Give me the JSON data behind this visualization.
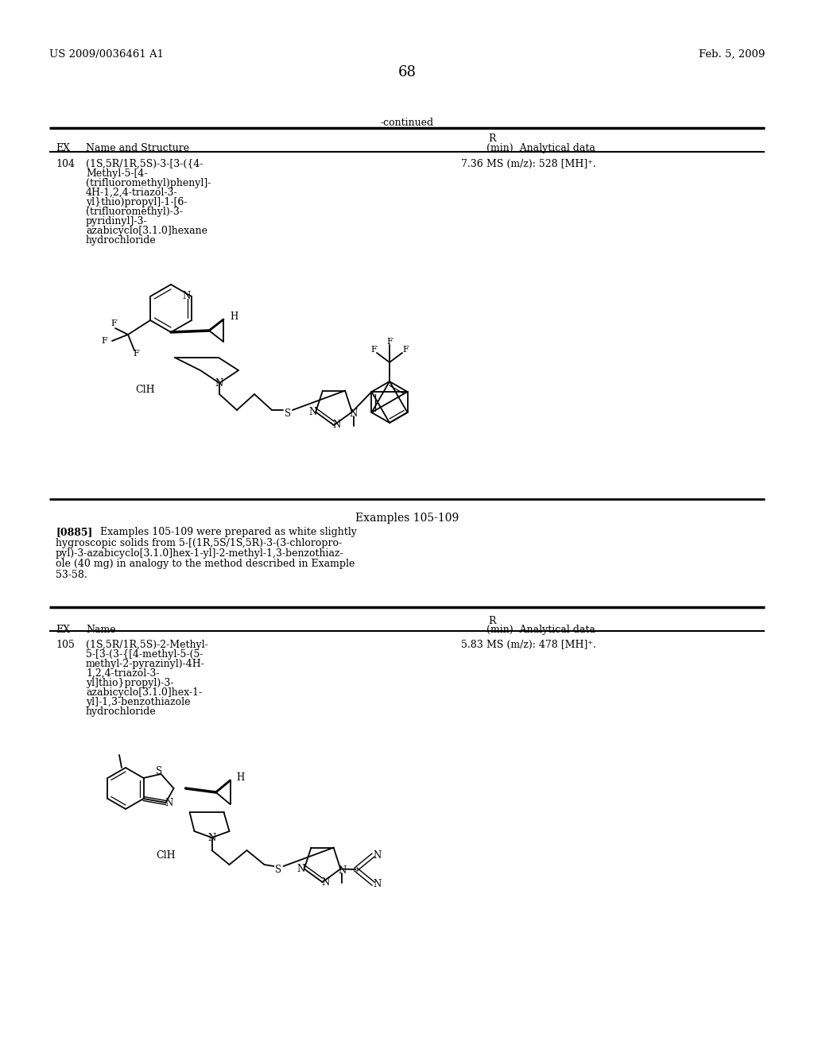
{
  "page_number": "68",
  "patent_number": "US 2009/0036461 A1",
  "patent_date": "Feb. 5, 2009",
  "continued_label": "-continued",
  "table1_col_r": "R",
  "table1_col1": "EX",
  "table1_col2": "Name and Structure",
  "table1_col3": "(min)  Analytical data",
  "ex104": "104",
  "ex104_name_line1": "(1S,5R/1R,5S)-3-[3-({4-",
  "ex104_name_line2": "Methyl-5-[4-",
  "ex104_name_line3": "(trifluoromethyl)phenyl]-",
  "ex104_name_line4": "4H-1,2,4-triazol-3-",
  "ex104_name_line5": "yl}thio)propyl]-1-[6-",
  "ex104_name_line6": "(trifluoromethyl)-3-",
  "ex104_name_line7": "pyridinyl]-3-",
  "ex104_name_line8": "azabicyclo[3.1.0]hexane",
  "ex104_name_line9": "hydrochloride",
  "ex104_rt": "7.36",
  "ex104_ms": "MS (m/z): 528 [MH]⁺.",
  "examples_header": "Examples 105-109",
  "para0885": "[0885]",
  "para_rest_line1": "   Examples 105-109 were prepared as white slightly",
  "para_rest_line2": "hygroscopic solids from 5-[(1R,5S/1S,5R)-3-(3-chloropro-",
  "para_rest_line3": "pyl)-3-azabicyclo[3.1.0]hex-1-yl]-2-methyl-1,3-benzothiaz-",
  "para_rest_line4": "ole (40 mg) in analogy to the method described in Example",
  "para_rest_line5": "53-58.",
  "table2_col_r": "R",
  "table2_col1": "EX",
  "table2_col2": "Name",
  "table2_col3": "(min)  Analytical data",
  "ex105": "105",
  "ex105_name_line1": "(1S,5R/1R,5S)-2-Methyl-",
  "ex105_name_line2": "5-[3-(3-{[4-methyl-5-(5-",
  "ex105_name_line3": "methyl-2-pyrazinyl)-4H-",
  "ex105_name_line4": "1,2,4-triazol-3-",
  "ex105_name_line5": "yl]thio}propyl)-3-",
  "ex105_name_line6": "azabicyclo[3.1.0]hex-1-",
  "ex105_name_line7": "yl]-1,3-benzothiazole",
  "ex105_name_line8": "hydrochloride",
  "ex105_rt": "5.83",
  "ex105_ms": "MS (m/z): 478 [MH]⁺.",
  "bg_color": "#ffffff"
}
